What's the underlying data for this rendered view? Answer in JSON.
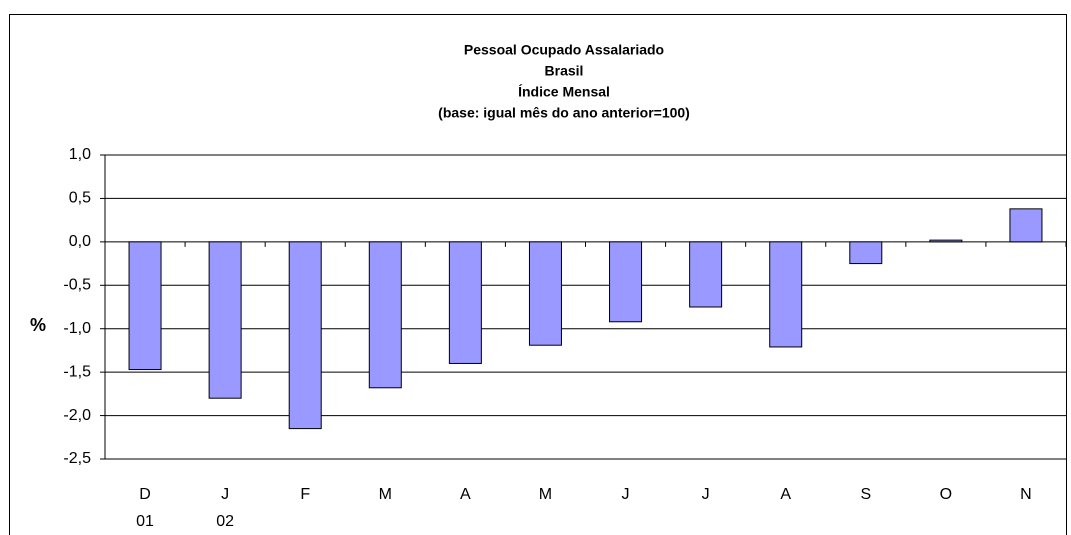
{
  "chart_data": {
    "type": "bar",
    "title": [
      "Pessoal Ocupado Assalariado",
      "Brasil",
      "Índice Mensal",
      "(base: igual mês do ano anterior=100)"
    ],
    "y_label": "%",
    "categories": [
      "D",
      "J",
      "F",
      "M",
      "A",
      "M",
      "J",
      "J",
      "A",
      "S",
      "O",
      "N"
    ],
    "category_years": [
      "01",
      "02",
      null,
      null,
      null,
      null,
      null,
      null,
      null,
      null,
      null,
      null
    ],
    "values": [
      -1.47,
      -1.8,
      -2.15,
      -1.68,
      -1.4,
      -1.19,
      -0.92,
      -0.75,
      -1.21,
      -0.25,
      0.02,
      0.38
    ],
    "color": "#9999ff",
    "ylim": [
      -2.5,
      1.0
    ],
    "yticks": [
      {
        "value": 1.0,
        "label": "1,0"
      },
      {
        "value": 0.5,
        "label": "0,5"
      },
      {
        "value": 0.0,
        "label": "0,0"
      },
      {
        "value": -0.5,
        "label": "-0,5"
      },
      {
        "value": -1.0,
        "label": "-1,0"
      },
      {
        "value": -1.5,
        "label": "-1,5"
      },
      {
        "value": -2.0,
        "label": "-2,0"
      },
      {
        "value": -2.5,
        "label": "-2,5"
      }
    ],
    "grid": true
  }
}
